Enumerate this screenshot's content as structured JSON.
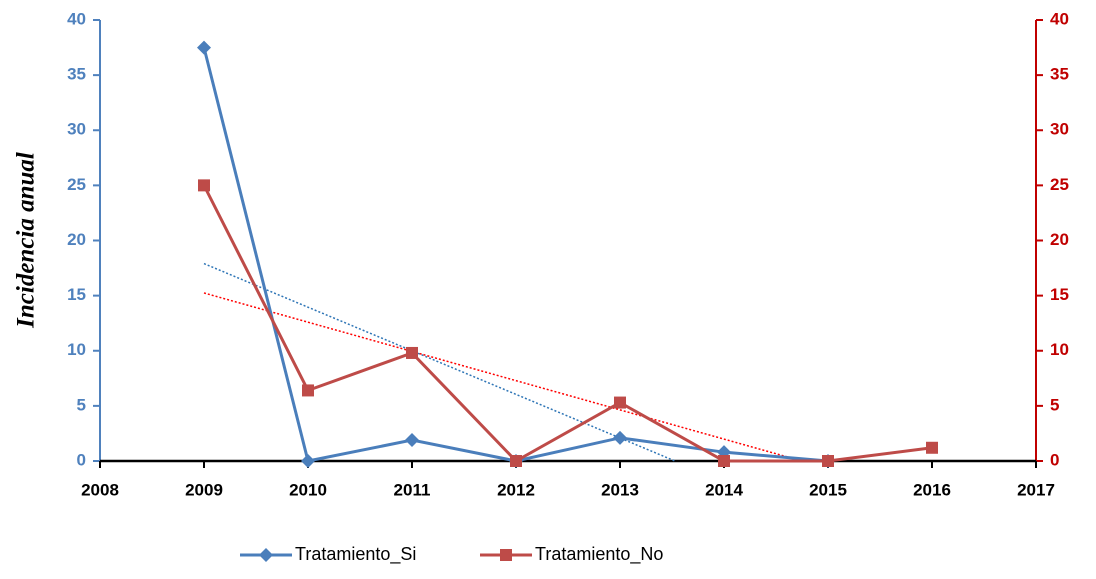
{
  "chart_data": {
    "type": "line",
    "y_label": "Incidencia anual",
    "xlim": [
      2008,
      2017
    ],
    "xticks": [
      2008,
      2009,
      2010,
      2011,
      2012,
      2013,
      2014,
      2015,
      2016,
      2017
    ],
    "ylim": [
      0,
      40
    ],
    "yticks": [
      0,
      5,
      10,
      15,
      20,
      25,
      30,
      35,
      40
    ],
    "y_color": "#4f81bd",
    "y2lim": [
      0,
      40
    ],
    "y2ticks": [
      0,
      5,
      10,
      15,
      20,
      25,
      30,
      35,
      40
    ],
    "y2_color": "#c00000",
    "trendline": "linear",
    "series": [
      {
        "name": "Tratamiento_Si",
        "color": "#4a7ebb",
        "marker": "diamond",
        "axis": "y",
        "x": [
          2009,
          2010,
          2011,
          2012,
          2013,
          2014,
          2015
        ],
        "values": [
          37.5,
          0,
          1.9,
          0,
          2.1,
          0.8,
          0
        ]
      },
      {
        "name": "Tratamiento_No",
        "color": "#be4b48",
        "marker": "square",
        "axis": "y2",
        "x": [
          2009,
          2010,
          2011,
          2012,
          2013,
          2014,
          2015,
          2016
        ],
        "values": [
          25,
          6.4,
          9.8,
          0,
          5.3,
          0,
          0,
          1.2
        ]
      }
    ]
  }
}
